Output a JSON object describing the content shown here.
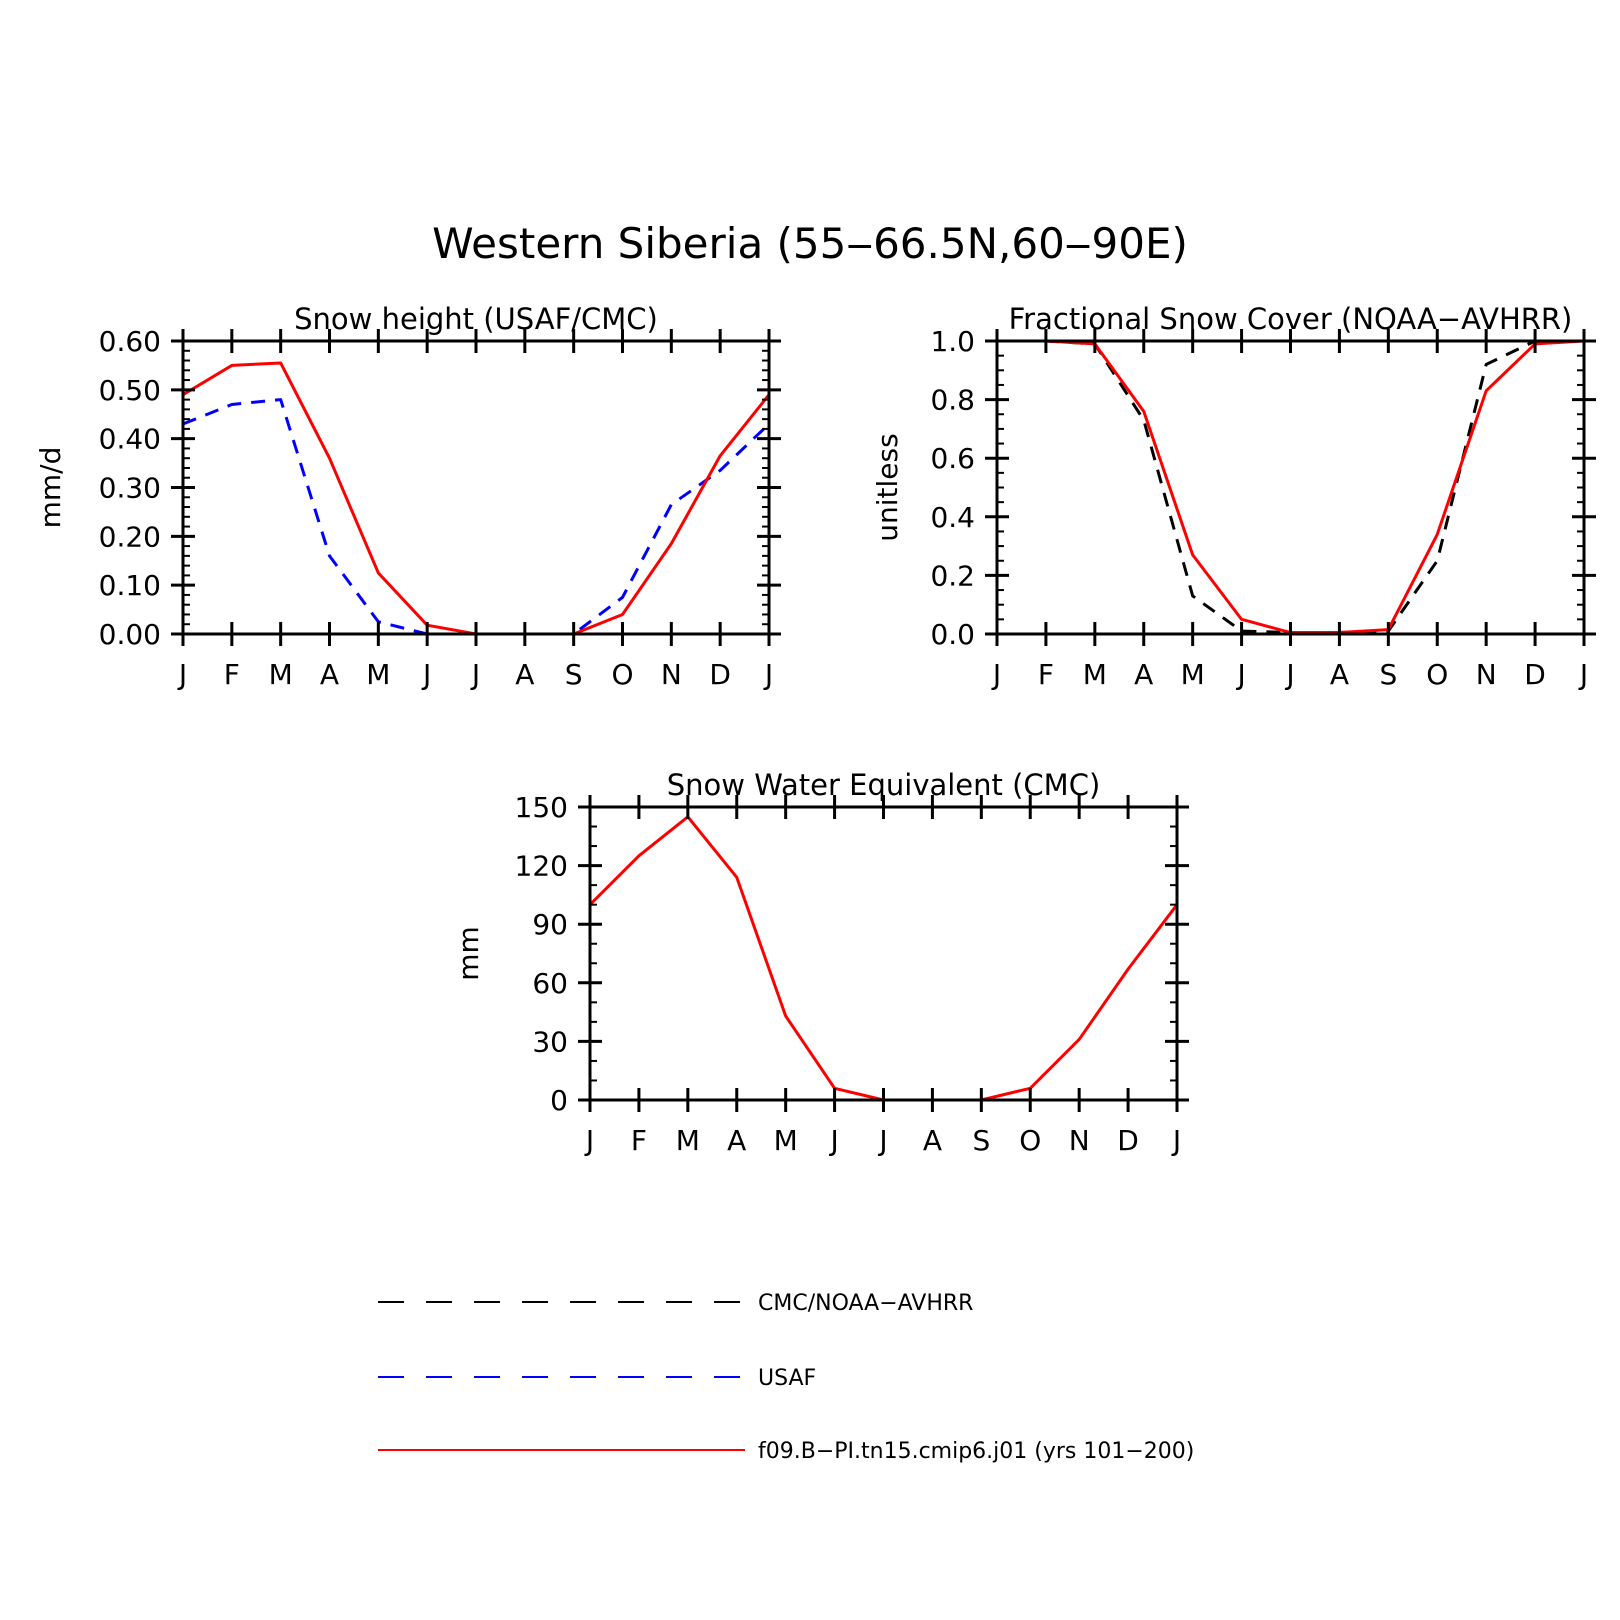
{
  "figure": {
    "title": "Western Siberia (55‒66.5N,60‒90E)"
  },
  "colors": {
    "obs_black": "#000000",
    "obs_blue": "#0000ff",
    "model_red": "#ff0000"
  },
  "months": [
    "J",
    "F",
    "M",
    "A",
    "M",
    "J",
    "J",
    "A",
    "S",
    "O",
    "N",
    "D",
    "J"
  ],
  "chart_data": [
    {
      "id": "snow-height",
      "type": "line",
      "title": "Snow height (USAF/CMC)",
      "xlabel": "",
      "ylabel": "mm/d",
      "ylim": [
        0,
        0.6
      ],
      "yticks": [
        0,
        0.1,
        0.2,
        0.3,
        0.4,
        0.5,
        0.6
      ],
      "yticklabels": [
        "0.00",
        "0.10",
        "0.20",
        "0.30",
        "0.40",
        "0.50",
        "0.60"
      ],
      "yminor": 0.02,
      "grid": false,
      "series": [
        {
          "name": "CMC/NOAA−AVHRR",
          "style": "dashed",
          "color": "#000000",
          "values": [
            0,
            0,
            0,
            0,
            0,
            0,
            0,
            0,
            0,
            0,
            0,
            0,
            0
          ]
        },
        {
          "name": "USAF",
          "style": "dashed",
          "color": "#0000ff",
          "values": [
            0.43,
            0.47,
            0.48,
            0.16,
            0.025,
            0.0,
            0.0,
            0.0,
            0.0,
            0.075,
            0.265,
            0.335,
            0.43
          ]
        },
        {
          "name": "f09.B−PI.tn15.cmip6.j01 (yrs 101−200)",
          "style": "solid",
          "color": "#ff0000",
          "values": [
            0.49,
            0.55,
            0.555,
            0.36,
            0.125,
            0.018,
            0.0,
            0.0,
            0.0,
            0.04,
            0.185,
            0.365,
            0.49
          ]
        }
      ]
    },
    {
      "id": "fractional-snow-cover",
      "type": "line",
      "title": "Fractional Snow Cover (NOAA−AVHRR)",
      "xlabel": "",
      "ylabel": "unitless",
      "ylim": [
        0,
        1.0
      ],
      "yticks": [
        0,
        0.2,
        0.4,
        0.6,
        0.8,
        1.0
      ],
      "yticklabels": [
        "0.0",
        "0.2",
        "0.4",
        "0.6",
        "0.8",
        "1.0"
      ],
      "yminor": 0.05,
      "grid": false,
      "series": [
        {
          "name": "CMC/NOAA−AVHRR",
          "style": "dashed",
          "color": "#000000",
          "values": [
            1.0,
            1.0,
            0.99,
            0.73,
            0.13,
            0.01,
            0.005,
            0.005,
            0.01,
            0.25,
            0.92,
            1.0,
            1.0
          ]
        },
        {
          "name": "f09.B−PI.tn15.cmip6.j01 (yrs 101−200)",
          "style": "solid",
          "color": "#ff0000",
          "values": [
            1.0,
            1.0,
            0.99,
            0.76,
            0.27,
            0.05,
            0.005,
            0.005,
            0.015,
            0.34,
            0.83,
            0.99,
            1.0
          ]
        }
      ]
    },
    {
      "id": "snow-water-equivalent",
      "type": "line",
      "title": "Snow Water Equivalent (CMC)",
      "xlabel": "",
      "ylabel": "mm",
      "ylim": [
        0,
        150
      ],
      "yticks": [
        0,
        30,
        60,
        90,
        120,
        150
      ],
      "yticklabels": [
        "0",
        "30",
        "60",
        "90",
        "120",
        "150"
      ],
      "yminor": 10,
      "grid": false,
      "series": [
        {
          "name": "CMC/NOAA−AVHRR",
          "style": "dashed",
          "color": "#000000",
          "values": [
            0,
            0,
            0,
            0,
            0,
            0,
            0,
            0,
            0,
            0,
            0,
            0,
            0
          ]
        },
        {
          "name": "f09.B−PI.tn15.cmip6.j01 (yrs 101−200)",
          "style": "solid",
          "color": "#ff0000",
          "values": [
            100,
            125,
            145,
            114,
            43,
            6,
            0,
            0,
            0,
            6,
            31,
            67,
            100
          ]
        }
      ]
    }
  ],
  "legend": {
    "placement": "bottom-left",
    "items": [
      {
        "label": "CMC/NOAA−AVHRR",
        "style": "dashed",
        "color": "#000000"
      },
      {
        "label": "USAF",
        "style": "dashed",
        "color": "#0000ff"
      },
      {
        "label": "f09.B−PI.tn15.cmip6.j01 (yrs 101−200)",
        "style": "solid",
        "color": "#ff0000"
      }
    ]
  }
}
